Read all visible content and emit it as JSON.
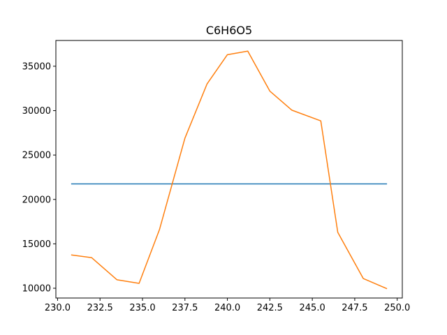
{
  "chart_data": {
    "type": "line",
    "title": "C6H6O5",
    "xlabel": "",
    "ylabel": "",
    "xlim": [
      229.9,
      250.3
    ],
    "ylim": [
      8900,
      37900
    ],
    "grid": false,
    "x_ticks": [
      230.0,
      232.5,
      235.0,
      237.5,
      240.0,
      242.5,
      245.0,
      247.5,
      250.0
    ],
    "x_tick_labels": [
      "230.0",
      "232.5",
      "235.0",
      "237.5",
      "240.0",
      "242.5",
      "245.0",
      "247.5",
      "250.0"
    ],
    "y_ticks": [
      10000,
      15000,
      20000,
      25000,
      30000,
      35000
    ],
    "y_tick_labels": [
      "10000",
      "15000",
      "20000",
      "25000",
      "30000",
      "35000"
    ],
    "series": [
      {
        "color": "#1f77b4",
        "x": [
          230.8,
          249.4
        ],
        "y": [
          21750,
          21750
        ]
      },
      {
        "color": "#ff7f0e",
        "x": [
          230.8,
          232.0,
          233.5,
          234.8,
          236.0,
          237.5,
          238.8,
          240.0,
          241.2,
          242.5,
          243.8,
          245.5,
          246.5,
          248.0,
          249.4
        ],
        "y": [
          13750,
          13450,
          10950,
          10550,
          16600,
          26900,
          33000,
          36300,
          36700,
          32200,
          30050,
          28850,
          16300,
          11100,
          9950
        ]
      }
    ]
  }
}
